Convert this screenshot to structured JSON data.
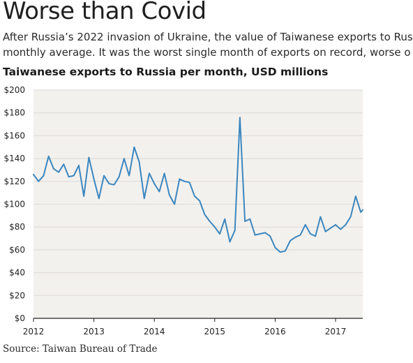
{
  "header": {
    "headline": "Worse than Covid",
    "dek_line1": "After Russia’s 2022 invasion of Ukraine, the value of Taiwanese exports to Rus",
    "dek_line2": "monthly average. It was the worst single month of exports on record, worse o"
  },
  "footer": {
    "source": "Source: Taiwan Bureau of Trade"
  },
  "colors": {
    "line": "#3b86bf",
    "plot_background": "#f3f1ee",
    "grid": "#dcd9d5",
    "axis": "#222222"
  },
  "chart_data": {
    "type": "line",
    "title": "Taiwanese exports to Russia per month, USD millions",
    "xlabel": "",
    "ylabel": "",
    "ylim": [
      0,
      200
    ],
    "y_ticks": [
      "$0",
      "$20",
      "$40",
      "$60",
      "$80",
      "$100",
      "$120",
      "$140",
      "$160",
      "$180",
      "$200"
    ],
    "x_ticks": [
      "2012",
      "2013",
      "2014",
      "2015",
      "2016",
      "2017"
    ],
    "grid": true,
    "series": [
      {
        "values": [
          126,
          120,
          125,
          142,
          131,
          128,
          135,
          124,
          125,
          134,
          107,
          141,
          122,
          105,
          125,
          118,
          117,
          124,
          140,
          125,
          150,
          137,
          105,
          127,
          118,
          111,
          127,
          108,
          100,
          122,
          120,
          119,
          107,
          103,
          91,
          85,
          80,
          74,
          87,
          67,
          77,
          176,
          85,
          87,
          73,
          74,
          75,
          72,
          62,
          58,
          59,
          68,
          71,
          73,
          82,
          74,
          72,
          89,
          76,
          79,
          82,
          78,
          82,
          89,
          107,
          93,
          95
        ]
      }
    ]
  }
}
